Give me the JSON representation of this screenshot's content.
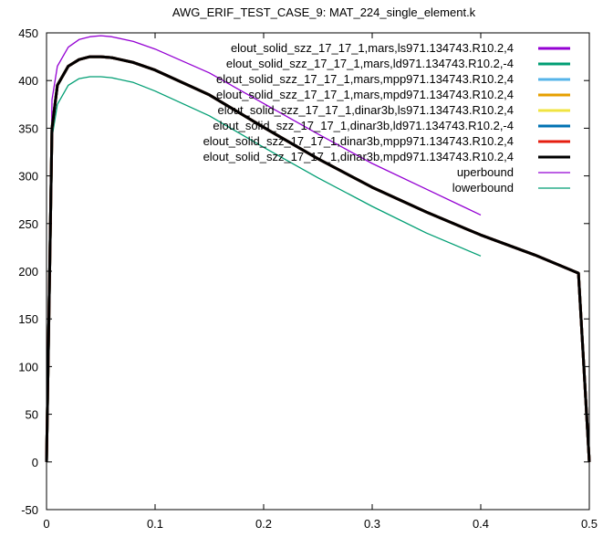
{
  "chart_data": {
    "type": "line",
    "title": "AWG_ERIF_TEST_CASE_9: MAT_224_single_element.k",
    "xlabel": "",
    "ylabel": "",
    "xlim": [
      0,
      0.5
    ],
    "ylim": [
      -50,
      450
    ],
    "x_ticks": [
      "0",
      "0.1",
      "0.2",
      "0.3",
      "0.4",
      "0.5"
    ],
    "y_ticks": [
      "-50",
      "0",
      "50",
      "100",
      "150",
      "200",
      "250",
      "300",
      "350",
      "400",
      "450"
    ],
    "x_tick_values": [
      0,
      0.1,
      0.2,
      0.3,
      0.4,
      0.5
    ],
    "y_tick_values": [
      -50,
      0,
      50,
      100,
      150,
      200,
      250,
      300,
      350,
      400,
      450
    ],
    "grid": false,
    "legend_position": "top-right",
    "series": [
      {
        "name": "elout_solid_szz_17_17_1,mars,ls971.134743.R10.2,4",
        "color": "#9400d3",
        "width": 3,
        "x": [
          0,
          0.005,
          0.01,
          0.02,
          0.03,
          0.04,
          0.05,
          0.06,
          0.08,
          0.1,
          0.15,
          0.2,
          0.25,
          0.3,
          0.35,
          0.4,
          0.45,
          0.49,
          0.495,
          0.5
        ],
        "y": [
          0,
          350,
          395,
          415,
          422,
          425,
          425,
          424,
          419,
          411,
          385,
          351,
          318,
          288,
          262,
          238,
          217,
          198,
          100,
          0
        ]
      },
      {
        "name": "elout_solid_szz_17_17_1,mars,ld971.134743.R10.2,-4",
        "color": "#009e73",
        "width": 3,
        "x": [
          0,
          0.005,
          0.01,
          0.02,
          0.03,
          0.04,
          0.05,
          0.06,
          0.08,
          0.1,
          0.15,
          0.2,
          0.25,
          0.3,
          0.35,
          0.4,
          0.45,
          0.49,
          0.495,
          0.5
        ],
        "y": [
          0,
          350,
          395,
          415,
          422,
          425,
          425,
          424,
          419,
          411,
          385,
          351,
          318,
          288,
          262,
          238,
          217,
          198,
          100,
          0
        ]
      },
      {
        "name": "elout_solid_szz_17_17_1,mars,mpp971.134743.R10.2,4",
        "color": "#56b4e9",
        "width": 3,
        "x": [
          0,
          0.005,
          0.01,
          0.02,
          0.03,
          0.04,
          0.05,
          0.06,
          0.08,
          0.1,
          0.15,
          0.2,
          0.25,
          0.3,
          0.35,
          0.4,
          0.45,
          0.49,
          0.495,
          0.5
        ],
        "y": [
          0,
          350,
          395,
          415,
          422,
          425,
          425,
          424,
          419,
          411,
          385,
          351,
          318,
          288,
          262,
          238,
          217,
          198,
          100,
          0
        ]
      },
      {
        "name": "elout_solid_szz_17_17_1,mars,mpd971.134743.R10.2,4",
        "color": "#e69f00",
        "width": 3,
        "x": [
          0,
          0.005,
          0.01,
          0.02,
          0.03,
          0.04,
          0.05,
          0.06,
          0.08,
          0.1,
          0.15,
          0.2,
          0.25,
          0.3,
          0.35,
          0.4,
          0.45,
          0.49,
          0.495,
          0.5
        ],
        "y": [
          0,
          350,
          395,
          415,
          422,
          425,
          425,
          424,
          419,
          411,
          385,
          351,
          318,
          288,
          262,
          238,
          217,
          198,
          100,
          0
        ]
      },
      {
        "name": "elout_solid_szz_17_17_1,dinar3b,ls971.134743.R10.2,4",
        "color": "#f0e442",
        "width": 3,
        "x": [
          0,
          0.005,
          0.01,
          0.02,
          0.03,
          0.04,
          0.05,
          0.06,
          0.08,
          0.1,
          0.15,
          0.2,
          0.25,
          0.3,
          0.35,
          0.4,
          0.45,
          0.49,
          0.495,
          0.5
        ],
        "y": [
          0,
          350,
          395,
          415,
          422,
          425,
          425,
          424,
          419,
          411,
          385,
          351,
          318,
          288,
          262,
          238,
          217,
          198,
          100,
          0
        ]
      },
      {
        "name": "elout_solid_szz_17_17_1,dinar3b,ld971.134743.R10.2,-4",
        "color": "#0072b2",
        "width": 3,
        "x": [
          0,
          0.005,
          0.01,
          0.02,
          0.03,
          0.04,
          0.05,
          0.06,
          0.08,
          0.1,
          0.15,
          0.2,
          0.25,
          0.3,
          0.35,
          0.4,
          0.45,
          0.49,
          0.495,
          0.5
        ],
        "y": [
          0,
          350,
          395,
          415,
          422,
          425,
          425,
          424,
          419,
          411,
          385,
          351,
          318,
          288,
          262,
          238,
          217,
          198,
          100,
          0
        ]
      },
      {
        "name": "elout_solid_szz_17_17_1,dinar3b,mpp971.134743.R10.2,4",
        "color": "#e51e10",
        "width": 3,
        "x": [
          0,
          0.005,
          0.01,
          0.02,
          0.03,
          0.04,
          0.05,
          0.06,
          0.08,
          0.1,
          0.15,
          0.2,
          0.25,
          0.3,
          0.35,
          0.4,
          0.45,
          0.49,
          0.495,
          0.5
        ],
        "y": [
          0,
          350,
          395,
          415,
          422,
          425,
          425,
          424,
          419,
          411,
          385,
          351,
          318,
          288,
          262,
          238,
          217,
          198,
          100,
          0
        ]
      },
      {
        "name": "elout_solid_szz_17_17_1,dinar3b,mpd971.134743.R10.2,4",
        "color": "#000000",
        "width": 3,
        "x": [
          0,
          0.005,
          0.01,
          0.02,
          0.03,
          0.04,
          0.05,
          0.06,
          0.08,
          0.1,
          0.15,
          0.2,
          0.25,
          0.3,
          0.35,
          0.4,
          0.45,
          0.49,
          0.495,
          0.5
        ],
        "y": [
          0,
          350,
          395,
          415,
          422,
          425,
          425,
          424,
          419,
          411,
          385,
          351,
          318,
          288,
          262,
          238,
          217,
          198,
          100,
          0
        ]
      },
      {
        "name": "uperbound",
        "color": "#9400d3",
        "width": 1.3,
        "x": [
          0,
          0.005,
          0.01,
          0.02,
          0.03,
          0.04,
          0.05,
          0.06,
          0.08,
          0.1,
          0.15,
          0.2,
          0.25,
          0.3,
          0.35,
          0.4
        ],
        "y": [
          0,
          380,
          415,
          435,
          443,
          446,
          447,
          446,
          441,
          433,
          408,
          376,
          344,
          313,
          286,
          259
        ]
      },
      {
        "name": "lowerbound",
        "color": "#009e73",
        "width": 1.3,
        "x": [
          0,
          0.005,
          0.01,
          0.02,
          0.03,
          0.04,
          0.05,
          0.06,
          0.08,
          0.1,
          0.15,
          0.2,
          0.25,
          0.3,
          0.35,
          0.4
        ],
        "y": [
          0,
          340,
          375,
          395,
          402,
          404,
          404,
          403,
          398,
          389,
          363,
          330,
          298,
          268,
          240,
          216
        ]
      }
    ]
  }
}
